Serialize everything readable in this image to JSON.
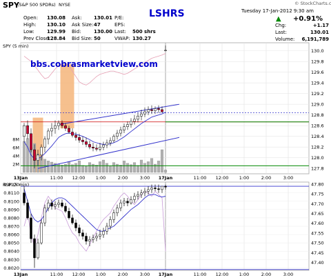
{
  "header": {
    "symbol": "SPY",
    "name": "(S&P 500 SPDRs)",
    "exchange": "NYSE",
    "ticker_badge": "LSHRS",
    "datetime": "Tuesday  17-Jan-2012  9:30 am",
    "brand": "© StockCharts.com",
    "quote_left": [
      {
        "label": "Open:",
        "value": "130.08"
      },
      {
        "label": "High:",
        "value": "130.10"
      },
      {
        "label": "Low:",
        "value": "129.99"
      },
      {
        "label": "Prev Close:",
        "value": "128.84"
      }
    ],
    "quote_mid": [
      {
        "label": "Ask:",
        "value": "130.01"
      },
      {
        "label": "Ask Size:",
        "value": "47"
      },
      {
        "label": "Bid:",
        "value": "130.00"
      },
      {
        "label": "Bid Size:",
        "value": "50"
      }
    ],
    "quote_right": [
      {
        "label": "P/E:",
        "value": ""
      },
      {
        "label": "EPS:",
        "value": ""
      },
      {
        "label": "Last:",
        "value": "500 shrs"
      },
      {
        "label": "VWAP:",
        "value": "130.27"
      }
    ],
    "change_pct": "+0.91%",
    "quote_far": [
      {
        "label": "Chg:",
        "value": "+1.17"
      },
      {
        "label": "Last:",
        "value": "130.01"
      },
      {
        "label": "Volume:",
        "value": "6,191,789"
      }
    ]
  },
  "watermark": "bbs.cobrasmarketview.com",
  "colors": {
    "up": "#ffffff",
    "down": "#cc0033",
    "volume": "#b0b0b0",
    "channel": "#3333cc",
    "support": "#008800",
    "resistance": "#cc0000",
    "highlight": "#f5b57a",
    "badge": "#0000cc",
    "change_up": "#008800",
    "rsp_line": "#000000"
  },
  "chart_data": [
    {
      "type": "candlestick",
      "panel_label": "SPY (5 min)",
      "x_labels": [
        "13Jan",
        "11:00",
        "12:00",
        "1:00",
        "2:00",
        "3:00",
        "17Jan",
        "11:00",
        "12:00",
        "1:00",
        "2:00",
        "3:00"
      ],
      "y_ticks": [
        "130.0",
        "129.8",
        "129.6",
        "129.4",
        "129.2",
        "129.0",
        "128.8",
        "128.6",
        "128.4",
        "128.2",
        "128.0",
        "127.8"
      ],
      "ylim": [
        127.7,
        130.15
      ],
      "volume_ticks": [
        "8M",
        "6M",
        "4M",
        "2M"
      ],
      "volume_max": 10,
      "open": [
        128.4,
        128.6,
        128.45,
        128.15,
        127.95,
        128.05,
        128.2,
        128.35,
        128.5,
        128.55,
        128.6,
        128.65,
        128.6,
        128.55,
        128.48,
        128.42,
        128.38,
        128.33,
        128.3,
        128.25,
        128.2,
        128.18,
        128.16,
        128.2,
        128.24,
        128.28,
        128.32,
        128.4,
        128.46,
        128.52,
        128.58,
        128.62,
        128.68,
        128.72,
        128.78,
        128.82,
        128.86,
        128.9,
        128.88,
        128.92,
        128.9,
        130.0
      ],
      "high": [
        128.65,
        128.7,
        128.55,
        128.25,
        128.15,
        128.25,
        128.4,
        128.55,
        128.65,
        128.7,
        128.7,
        128.7,
        128.65,
        128.6,
        128.55,
        128.48,
        128.45,
        128.4,
        128.38,
        128.32,
        128.28,
        128.25,
        128.28,
        128.3,
        128.34,
        128.38,
        128.44,
        128.52,
        128.58,
        128.64,
        128.68,
        128.74,
        128.8,
        128.84,
        128.9,
        128.94,
        128.96,
        128.98,
        128.96,
        128.98,
        128.96,
        130.1
      ],
      "low": [
        128.3,
        128.35,
        128.1,
        127.8,
        127.85,
        127.95,
        128.1,
        128.25,
        128.4,
        128.45,
        128.52,
        128.55,
        128.5,
        128.45,
        128.38,
        128.32,
        128.28,
        128.24,
        128.2,
        128.16,
        128.12,
        128.12,
        128.12,
        128.14,
        128.18,
        128.22,
        128.28,
        128.34,
        128.4,
        128.46,
        128.52,
        128.56,
        128.62,
        128.66,
        128.7,
        128.76,
        128.8,
        128.82,
        128.82,
        128.84,
        128.84,
        129.99
      ],
      "close": [
        128.6,
        128.45,
        128.15,
        127.95,
        128.05,
        128.2,
        128.35,
        128.5,
        128.55,
        128.6,
        128.65,
        128.6,
        128.55,
        128.48,
        128.42,
        128.38,
        128.33,
        128.3,
        128.25,
        128.2,
        128.18,
        128.16,
        128.2,
        128.24,
        128.28,
        128.32,
        128.4,
        128.46,
        128.52,
        128.58,
        128.62,
        128.68,
        128.72,
        128.78,
        128.82,
        128.86,
        128.9,
        128.88,
        128.92,
        128.9,
        128.86,
        130.01
      ],
      "volume": [
        7.5,
        8.2,
        6.0,
        7.0,
        4.5,
        3.8,
        3.2,
        2.8,
        2.5,
        2.2,
        2.0,
        1.8,
        2.0,
        2.6,
        1.9,
        2.2,
        2.8,
        1.7,
        1.5,
        2.4,
        2.0,
        1.8,
        2.6,
        3.0,
        2.2,
        1.6,
        2.4,
        2.0,
        1.8,
        2.8,
        2.2,
        1.9,
        2.4,
        1.7,
        3.0,
        2.2,
        2.6,
        3.4,
        2.0,
        2.8,
        5.5,
        0.6
      ],
      "vwap_line": [
        128.3,
        128.2,
        128.05,
        127.98,
        127.98,
        128.02,
        128.08,
        128.15,
        128.22,
        128.3,
        128.38,
        128.42,
        128.45,
        128.46,
        128.45,
        128.44,
        128.42,
        128.4,
        128.37,
        128.34,
        128.3,
        128.28,
        128.26,
        128.25,
        128.25,
        128.26,
        128.28,
        128.31,
        128.35,
        128.39,
        128.44,
        128.49,
        128.54,
        128.59,
        128.64,
        128.68,
        128.72,
        128.76,
        128.78,
        128.8,
        128.82,
        128.85
      ],
      "pink_line": [
        129.9,
        129.85,
        129.8,
        129.72,
        129.64,
        129.55,
        129.48,
        129.5,
        129.58,
        129.66,
        129.72,
        129.76,
        129.78,
        129.72,
        129.62,
        129.52,
        129.42,
        129.38,
        129.36,
        129.4,
        129.46,
        129.52,
        129.56,
        129.58,
        129.6,
        129.62,
        129.62,
        129.6,
        129.58,
        129.56,
        129.58,
        129.62,
        129.66,
        129.7,
        129.74,
        129.78,
        129.82,
        129.86,
        129.88,
        129.9,
        129.92,
        129.95
      ],
      "upper_channel": [
        [
          10,
          128.62
        ],
        [
          45,
          129.0
        ]
      ],
      "lower_channel": [
        [
          4,
          127.8
        ],
        [
          45,
          128.38
        ]
      ],
      "resistance_line": 128.67,
      "dashed_level": 128.84,
      "support_level": 127.85,
      "highlight_zones": [
        [
          3,
          5
        ],
        [
          11,
          14
        ]
      ]
    },
    {
      "type": "line",
      "panel_label": "RSP (5 min)",
      "y_ticks_left": [
        "0.8120",
        "0.8110",
        "0.8100",
        "0.8090",
        "0.8080",
        "0.8070",
        "0.8060",
        "0.8050",
        "0.8040",
        "0.8030",
        "0.8020"
      ],
      "ylim_left": [
        0.8017,
        0.8123
      ],
      "y_ticks_right": [
        "47.80",
        "47.75",
        "47.70",
        "47.65",
        "47.60",
        "47.55",
        "47.50",
        "47.45",
        "47.40"
      ],
      "ylim_right": [
        47.36,
        47.81
      ],
      "blue_line": [
        0.8115,
        0.81,
        0.8085,
        0.8078,
        0.8075,
        0.8078,
        0.8084,
        0.8092,
        0.8098,
        0.8102,
        0.8104,
        0.8104,
        0.8102,
        0.8098,
        0.8094,
        0.809,
        0.8086,
        0.8082,
        0.8078,
        0.8074,
        0.807,
        0.8066,
        0.8064,
        0.8064,
        0.8066,
        0.8068,
        0.807,
        0.8074,
        0.8078,
        0.8082,
        0.8086,
        0.809,
        0.8093,
        0.8096,
        0.81,
        0.8104,
        0.8107,
        0.8108,
        0.8108,
        0.8106,
        0.8105,
        0.8106
      ],
      "purple_line": [
        0.807,
        0.8085,
        0.806,
        0.8045,
        0.806,
        0.808,
        0.8098,
        0.8106,
        0.81,
        0.8092,
        0.809,
        0.8088,
        0.808,
        0.807,
        0.8062,
        0.8058,
        0.805,
        0.8045,
        0.804,
        0.8048,
        0.8056,
        0.8064,
        0.8072,
        0.8078,
        0.8082,
        0.8086,
        0.8094,
        0.81,
        0.8106,
        0.811,
        0.8106,
        0.81,
        0.8096,
        0.8102,
        0.8108,
        0.8112,
        0.811,
        0.8106,
        0.8112,
        0.8108,
        0.8104,
        0.804
      ],
      "bar_open": [
        0.811,
        0.8098,
        0.808,
        0.8055,
        0.8032,
        0.805,
        0.8074,
        0.8092,
        0.8098,
        0.8094,
        0.8096,
        0.8098,
        0.8094,
        0.8088,
        0.808,
        0.8074,
        0.8068,
        0.8062,
        0.8058,
        0.8052,
        0.8054,
        0.8056,
        0.8058,
        0.806,
        0.8064,
        0.807,
        0.8078,
        0.8086,
        0.8092,
        0.8098,
        0.81,
        0.8098,
        0.8102,
        0.8106,
        0.8108,
        0.811,
        0.8112,
        0.8114,
        0.8116,
        0.8115,
        0.8114,
        0.8118
      ],
      "bar_high": [
        0.8118,
        0.8102,
        0.8085,
        0.806,
        0.8055,
        0.8078,
        0.8096,
        0.8102,
        0.8102,
        0.81,
        0.8102,
        0.8102,
        0.8098,
        0.8092,
        0.8084,
        0.8078,
        0.8072,
        0.8066,
        0.8062,
        0.8058,
        0.806,
        0.8062,
        0.8066,
        0.8068,
        0.8074,
        0.8082,
        0.809,
        0.8096,
        0.8102,
        0.8104,
        0.8104,
        0.8106,
        0.811,
        0.8112,
        0.8114,
        0.8116,
        0.8118,
        0.812,
        0.812,
        0.812,
        0.8118,
        0.812
      ],
      "bar_low": [
        0.8095,
        0.8078,
        0.805,
        0.802,
        0.803,
        0.8048,
        0.807,
        0.8088,
        0.809,
        0.809,
        0.8092,
        0.8092,
        0.8086,
        0.8078,
        0.8072,
        0.8064,
        0.8058,
        0.8054,
        0.8048,
        0.8046,
        0.805,
        0.8052,
        0.8054,
        0.8056,
        0.806,
        0.8066,
        0.8074,
        0.8082,
        0.8088,
        0.8094,
        0.8094,
        0.8096,
        0.8098,
        0.8102,
        0.8104,
        0.8106,
        0.8108,
        0.811,
        0.8112,
        0.811,
        0.811,
        0.8114
      ],
      "bar_close": [
        0.8098,
        0.808,
        0.8055,
        0.8032,
        0.805,
        0.8074,
        0.8092,
        0.8098,
        0.8094,
        0.8096,
        0.8098,
        0.8094,
        0.8088,
        0.808,
        0.8074,
        0.8068,
        0.8062,
        0.8058,
        0.8052,
        0.8054,
        0.8056,
        0.8058,
        0.806,
        0.8064,
        0.807,
        0.8078,
        0.8086,
        0.8092,
        0.8098,
        0.81,
        0.8098,
        0.8102,
        0.8106,
        0.8108,
        0.811,
        0.8112,
        0.8114,
        0.8116,
        0.8115,
        0.8114,
        0.8118,
        0.8117
      ],
      "support_level": 0.8018,
      "top_level": 0.8118
    }
  ]
}
